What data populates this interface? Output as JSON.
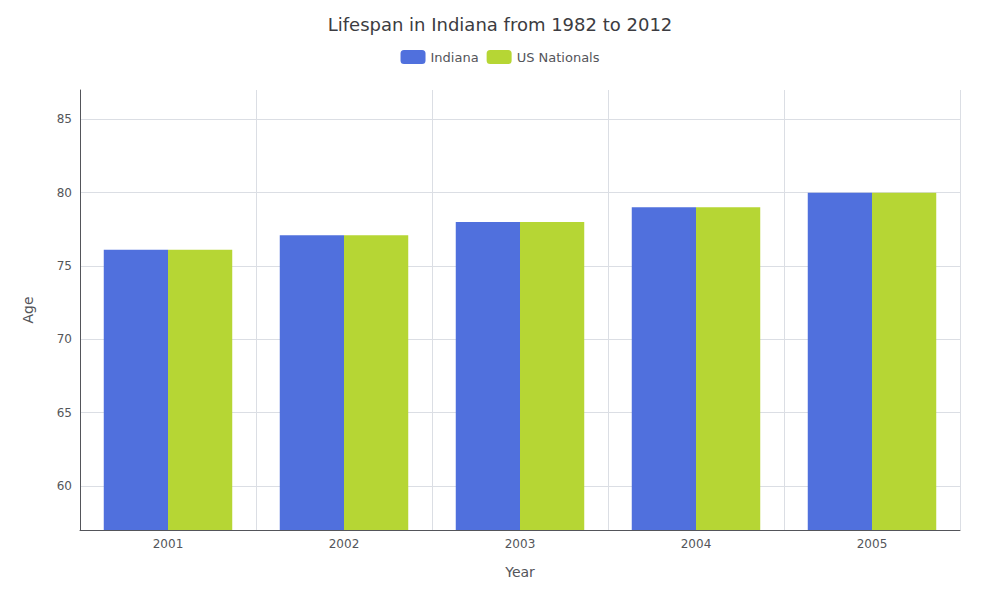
{
  "chart_data": {
    "type": "bar",
    "title": "Lifespan in Indiana from 1982 to 2012",
    "xlabel": "Year",
    "ylabel": "Age",
    "categories": [
      "2001",
      "2002",
      "2003",
      "2004",
      "2005"
    ],
    "series": [
      {
        "name": "Indiana",
        "values": [
          76.1,
          77.1,
          78.0,
          79.0,
          80.0
        ]
      },
      {
        "name": "US Nationals",
        "values": [
          76.1,
          77.1,
          78.0,
          79.0,
          80.0
        ]
      }
    ],
    "ylim": [
      57,
      87
    ],
    "yticks": [
      60,
      65,
      70,
      75,
      80,
      85
    ],
    "grid": true,
    "legend": "top"
  }
}
